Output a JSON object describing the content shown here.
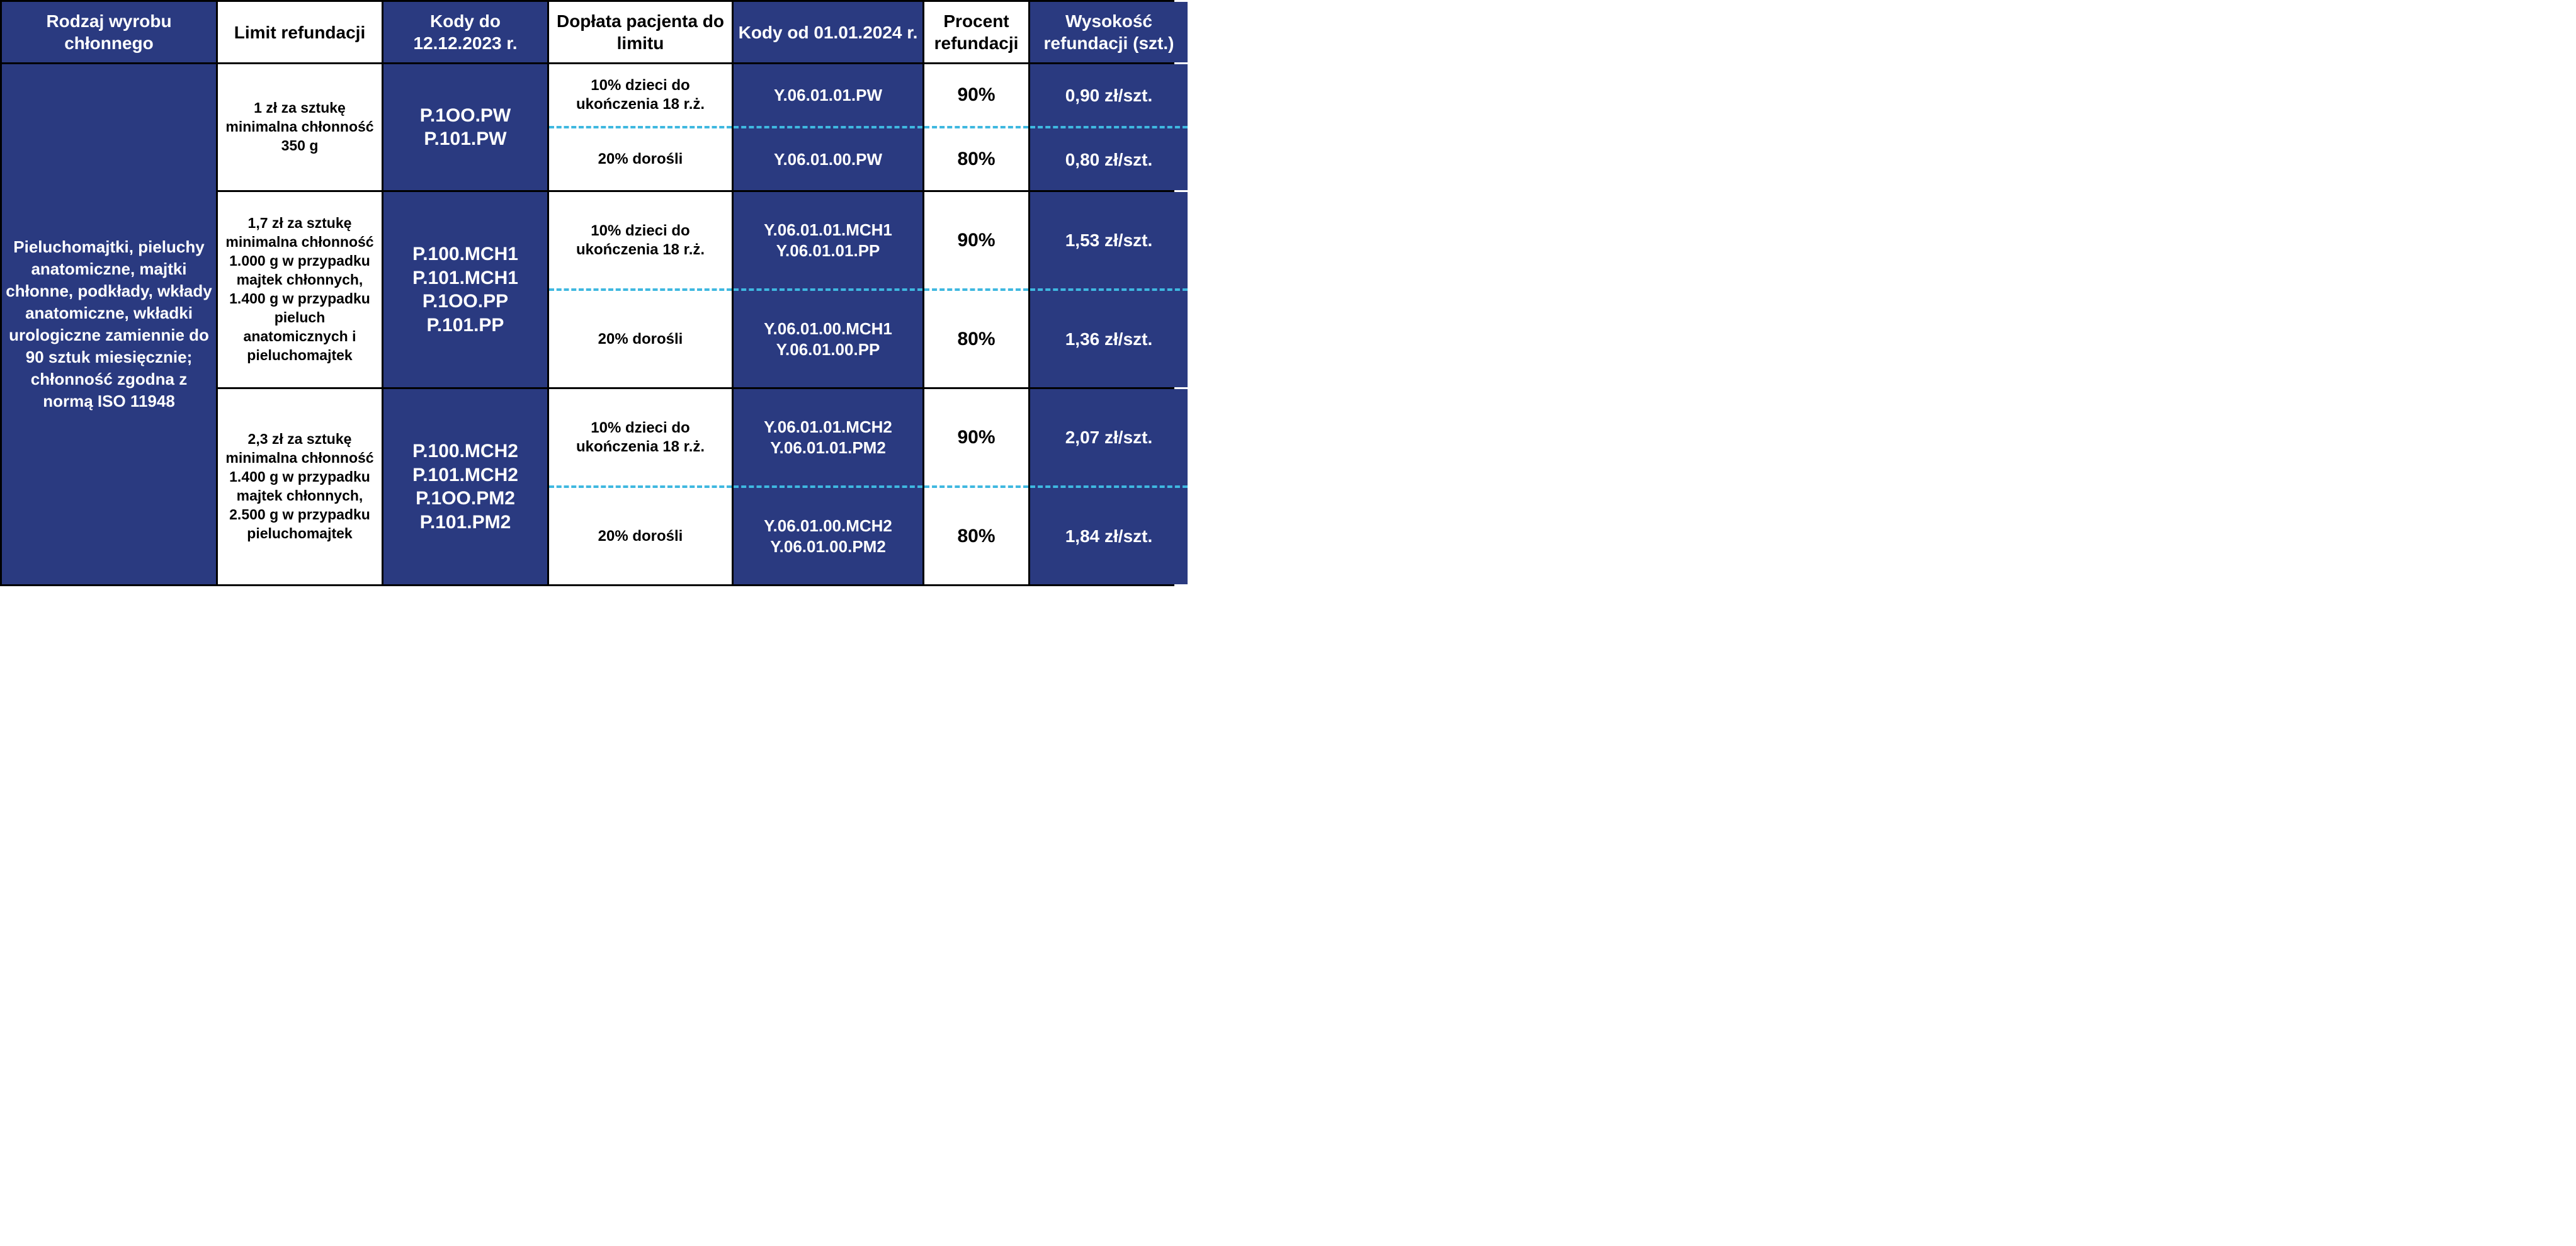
{
  "colors": {
    "dark_bg": "#2a3a80",
    "light_bg": "#ffffff",
    "border": "#000000",
    "dash": "#3fb8e0",
    "text_light": "#ffffff",
    "text_dark": "#000000"
  },
  "headers": {
    "c1": "Rodzaj wyrobu chłonnego",
    "c2": "Limit refundacji",
    "c3": "Kody do 12.12.2023 r.",
    "c4": "Dopłata pacjenta do limitu",
    "c5": "Kody od 01.01.2024 r.",
    "c6": "Procent refundacji",
    "c7": "Wysokość refundacji (szt.)"
  },
  "row_label": "Pieluchomajtki, pieluchy anatomiczne, majtki chłonne, podkłady, wkłady anatomiczne, wkładki urologiczne zamiennie do 90 sztuk miesięcznie; chłonność zgodna z normą ISO 11948",
  "groups": [
    {
      "limit": "1 zł za sztukę minimalna chłonność 350 g",
      "codes_old": "P.1OO.PW\nP.101.PW",
      "rows": [
        {
          "doplata": "10% dzieci do ukończenia 18 r.ż.",
          "codes_new": "Y.06.01.01.PW",
          "procent": "90%",
          "wys": "0,90 zł/szt."
        },
        {
          "doplata": "20% dorośli",
          "codes_new": "Y.06.01.00.PW",
          "procent": "80%",
          "wys": "0,80 zł/szt."
        }
      ]
    },
    {
      "limit": "1,7 zł za sztukę minimalna chłonność 1.000 g w przypadku majtek chłonnych, 1.400 g w przypadku pieluch anatomicznych i pieluchomajtek",
      "codes_old": "P.100.MCH1\nP.101.MCH1\nP.1OO.PP\nP.101.PP",
      "rows": [
        {
          "doplata": "10% dzieci do ukończenia 18 r.ż.",
          "codes_new": "Y.06.01.01.MCH1\nY.06.01.01.PP",
          "procent": "90%",
          "wys": "1,53 zł/szt."
        },
        {
          "doplata": "20% dorośli",
          "codes_new": "Y.06.01.00.MCH1\nY.06.01.00.PP",
          "procent": "80%",
          "wys": "1,36 zł/szt."
        }
      ]
    },
    {
      "limit": "2,3 zł za sztukę minimalna chłonność 1.400 g w przypadku majtek chłonnych, 2.500 g w przypadku pieluchomajtek",
      "codes_old": "P.100.MCH2\nP.101.MCH2\nP.1OO.PM2\nP.101.PM2",
      "rows": [
        {
          "doplata": "10% dzieci do ukończenia 18 r.ż.",
          "codes_new": "Y.06.01.01.MCH2\nY.06.01.01.PM2",
          "procent": "90%",
          "wys": "2,07 zł/szt."
        },
        {
          "doplata": "20% dorośli",
          "codes_new": "Y.06.01.00.MCH2\nY.06.01.00.PM2",
          "procent": "80%",
          "wys": "1,84 zł/szt."
        }
      ]
    }
  ]
}
